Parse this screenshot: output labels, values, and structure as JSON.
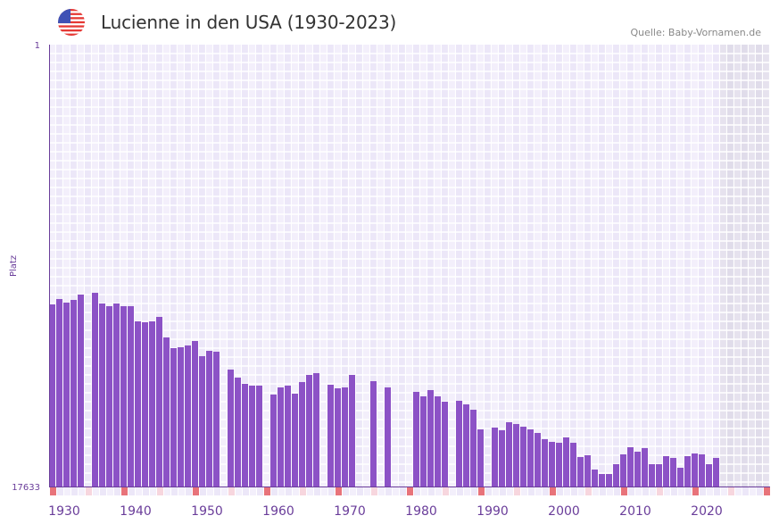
{
  "header": {
    "title": "Lucienne in den USA (1930-2023)",
    "source": "Quelle: Baby-Vornamen.de",
    "flag_icon": "us-flag-icon"
  },
  "colors": {
    "bar": "#8c52c6",
    "axis": "#6a3d9a",
    "label": "#6a3d9a",
    "decade_marker": "#e8737a",
    "half_decade_marker": "#f7d6de",
    "cell_a": "#f3effb",
    "cell_b": "#ece7f8",
    "future_a": "#e6e2ee",
    "future_b": "#e0dcea"
  },
  "chart_data": {
    "type": "bar",
    "title": "Lucienne in den USA (1930-2023)",
    "ylabel": "Platz",
    "xlabel": "",
    "y_inverted": true,
    "ylim": [
      1,
      17633
    ],
    "y_tick_labels": [
      "1",
      "17633"
    ],
    "x_range": [
      1930,
      2030
    ],
    "x_tick_labels": [
      "1930",
      "1940",
      "1950",
      "1960",
      "1970",
      "1980",
      "1990",
      "2000",
      "2010",
      "2020"
    ],
    "data_end_year": 2023,
    "grid": true,
    "series": [
      {
        "name": "Platz",
        "points": [
          [
            1930,
            10366
          ],
          [
            1931,
            10153
          ],
          [
            1932,
            10295
          ],
          [
            1933,
            10188
          ],
          [
            1934,
            9975
          ],
          [
            1936,
            9903
          ],
          [
            1937,
            10331
          ],
          [
            1938,
            10438
          ],
          [
            1939,
            10331
          ],
          [
            1940,
            10438
          ],
          [
            1941,
            10438
          ],
          [
            1942,
            11043
          ],
          [
            1943,
            11079
          ],
          [
            1944,
            11043
          ],
          [
            1945,
            10865
          ],
          [
            1946,
            11684
          ],
          [
            1947,
            12112
          ],
          [
            1948,
            12076
          ],
          [
            1949,
            12005
          ],
          [
            1950,
            11827
          ],
          [
            1951,
            12432
          ],
          [
            1952,
            12219
          ],
          [
            1953,
            12254
          ],
          [
            1955,
            12967
          ],
          [
            1956,
            13287
          ],
          [
            1957,
            13537
          ],
          [
            1958,
            13608
          ],
          [
            1959,
            13608
          ],
          [
            1961,
            13964
          ],
          [
            1962,
            13679
          ],
          [
            1963,
            13608
          ],
          [
            1964,
            13928
          ],
          [
            1965,
            13465
          ],
          [
            1966,
            13180
          ],
          [
            1967,
            13109
          ],
          [
            1969,
            13572
          ],
          [
            1970,
            13715
          ],
          [
            1971,
            13679
          ],
          [
            1972,
            13180
          ],
          [
            1975,
            13430
          ],
          [
            1977,
            13679
          ],
          [
            1981,
            13857
          ],
          [
            1982,
            14035
          ],
          [
            1983,
            13786
          ],
          [
            1984,
            14035
          ],
          [
            1985,
            14249
          ],
          [
            1987,
            14213
          ],
          [
            1988,
            14356
          ],
          [
            1989,
            14570
          ],
          [
            1990,
            15353
          ],
          [
            1992,
            15282
          ],
          [
            1993,
            15389
          ],
          [
            1994,
            15068
          ],
          [
            1995,
            15140
          ],
          [
            1996,
            15246
          ],
          [
            1997,
            15353
          ],
          [
            1998,
            15496
          ],
          [
            1999,
            15745
          ],
          [
            2000,
            15852
          ],
          [
            2001,
            15888
          ],
          [
            2002,
            15674
          ],
          [
            2003,
            15888
          ],
          [
            2004,
            16457
          ],
          [
            2005,
            16386
          ],
          [
            2006,
            16956
          ],
          [
            2007,
            17134
          ],
          [
            2008,
            17134
          ],
          [
            2009,
            16742
          ],
          [
            2010,
            16351
          ],
          [
            2011,
            16066
          ],
          [
            2012,
            16244
          ],
          [
            2013,
            16101
          ],
          [
            2014,
            16742
          ],
          [
            2015,
            16742
          ],
          [
            2016,
            16422
          ],
          [
            2017,
            16493
          ],
          [
            2018,
            16885
          ],
          [
            2019,
            16422
          ],
          [
            2020,
            16315
          ],
          [
            2021,
            16351
          ],
          [
            2022,
            16742
          ],
          [
            2023,
            16493
          ]
        ]
      }
    ]
  }
}
